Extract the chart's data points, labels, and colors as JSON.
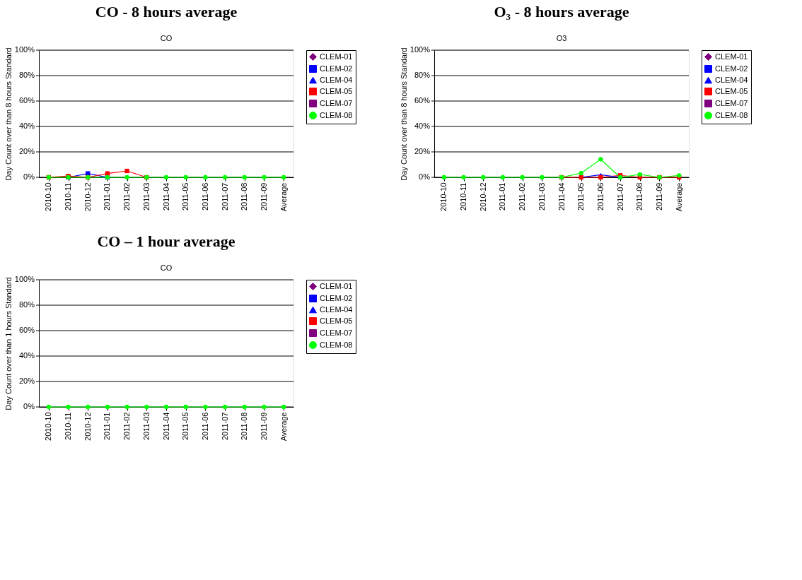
{
  "chart_data": [
    {
      "type": "line",
      "title": "CO - 8 hours average",
      "subtitle": "CO",
      "ylabel": "Day Count over than 8 hours Standard",
      "categories": [
        "2010-10",
        "2010-11",
        "2010-12",
        "2011-01",
        "2011-02",
        "2011-03",
        "2011-04",
        "2011-05",
        "2011-06",
        "2011-07",
        "2011-08",
        "2011-09",
        "Average"
      ],
      "ylim": [
        0,
        100
      ],
      "yticks": [
        {
          "value": 0,
          "label": "0%"
        },
        {
          "value": 20,
          "label": "20%"
        },
        {
          "value": 40,
          "label": "40%"
        },
        {
          "value": 60,
          "label": "60%"
        },
        {
          "value": 80,
          "label": "80%"
        },
        {
          "value": 100,
          "label": "100%"
        }
      ],
      "grid": "y",
      "legend": "right",
      "series": [
        {
          "name": "CLEM-01",
          "color": "#800080",
          "marker": "diamond",
          "values": [
            null,
            null,
            null,
            null,
            null,
            null,
            null,
            null,
            null,
            null,
            null,
            null,
            null
          ]
        },
        {
          "name": "CLEM-02",
          "color": "#0000ff",
          "marker": "square",
          "values": [
            null,
            0,
            3,
            0,
            null,
            null,
            null,
            null,
            null,
            null,
            null,
            null,
            null
          ]
        },
        {
          "name": "CLEM-04",
          "color": "#0000ff",
          "marker": "triangle",
          "values": [
            null,
            null,
            null,
            null,
            null,
            null,
            null,
            null,
            null,
            null,
            null,
            null,
            null
          ]
        },
        {
          "name": "CLEM-05",
          "color": "#ff0000",
          "marker": "square",
          "values": [
            0,
            1,
            0,
            3,
            5,
            0,
            null,
            null,
            null,
            null,
            null,
            null,
            null
          ]
        },
        {
          "name": "CLEM-07",
          "color": "#800080",
          "marker": "square",
          "values": [
            null,
            null,
            null,
            null,
            null,
            null,
            null,
            null,
            null,
            null,
            null,
            null,
            null
          ]
        },
        {
          "name": "CLEM-08",
          "color": "#00ff00",
          "marker": "circle",
          "values": [
            0,
            0,
            0,
            0,
            0,
            0,
            0,
            0,
            0,
            0,
            0,
            0,
            0
          ]
        }
      ]
    },
    {
      "type": "line",
      "title": "O₃ - 8 hours average",
      "subtitle": "O3",
      "ylabel": "Day Count over than 8 hours Standard",
      "categories": [
        "2010-10",
        "2010-11",
        "2010-12",
        "2011-01",
        "2011-02",
        "2011-03",
        "2011-04",
        "2011-05",
        "2011-06",
        "2011-07",
        "2011-08",
        "2011-09",
        "Average"
      ],
      "ylim": [
        0,
        100
      ],
      "yticks": [
        {
          "value": 0,
          "label": "0%"
        },
        {
          "value": 20,
          "label": "20%"
        },
        {
          "value": 40,
          "label": "40%"
        },
        {
          "value": 60,
          "label": "60%"
        },
        {
          "value": 80,
          "label": "80%"
        },
        {
          "value": 100,
          "label": "100%"
        }
      ],
      "grid": "y",
      "legend": "right",
      "series": [
        {
          "name": "CLEM-01",
          "color": "#800080",
          "marker": "diamond",
          "values": [
            null,
            null,
            null,
            null,
            null,
            null,
            null,
            null,
            null,
            null,
            null,
            null,
            null
          ]
        },
        {
          "name": "CLEM-02",
          "color": "#0000ff",
          "marker": "square",
          "values": [
            null,
            null,
            null,
            null,
            null,
            null,
            null,
            null,
            null,
            null,
            null,
            null,
            null
          ]
        },
        {
          "name": "CLEM-04",
          "color": "#0000ff",
          "marker": "triangle",
          "values": [
            null,
            null,
            null,
            null,
            null,
            null,
            null,
            0,
            2,
            0,
            null,
            null,
            null
          ]
        },
        {
          "name": "CLEM-05",
          "color": "#ff0000",
          "marker": "square",
          "values": [
            null,
            null,
            null,
            null,
            null,
            null,
            0,
            0,
            0,
            1.5,
            0,
            0,
            0
          ]
        },
        {
          "name": "CLEM-07",
          "color": "#800080",
          "marker": "square",
          "values": [
            null,
            null,
            null,
            null,
            null,
            null,
            null,
            null,
            null,
            null,
            null,
            null,
            null
          ]
        },
        {
          "name": "CLEM-08",
          "color": "#00ff00",
          "marker": "circle",
          "values": [
            0,
            0,
            0,
            0,
            0,
            0,
            0,
            3.3,
            14.2,
            0,
            2.3,
            0,
            1.5
          ]
        }
      ]
    },
    {
      "type": "line",
      "title": "CO – 1 hour average",
      "subtitle": "CO",
      "ylabel": "Day Count over than 1 hours Standard",
      "categories": [
        "2010-10",
        "2010-11",
        "2010-12",
        "2011-01",
        "2011-02",
        "2011-03",
        "2011-04",
        "2011-05",
        "2011-06",
        "2011-07",
        "2011-08",
        "2011-09",
        "Average"
      ],
      "ylim": [
        0,
        100
      ],
      "yticks": [
        {
          "value": 0,
          "label": "0%"
        },
        {
          "value": 20,
          "label": "20%"
        },
        {
          "value": 40,
          "label": "40%"
        },
        {
          "value": 60,
          "label": "60%"
        },
        {
          "value": 80,
          "label": "80%"
        },
        {
          "value": 100,
          "label": "100%"
        }
      ],
      "grid": "y",
      "legend": "right",
      "series": [
        {
          "name": "CLEM-01",
          "color": "#800080",
          "marker": "diamond",
          "values": [
            null,
            null,
            null,
            null,
            null,
            null,
            null,
            null,
            null,
            null,
            null,
            null,
            null
          ]
        },
        {
          "name": "CLEM-02",
          "color": "#0000ff",
          "marker": "square",
          "values": [
            null,
            null,
            null,
            null,
            null,
            null,
            null,
            null,
            null,
            null,
            null,
            null,
            null
          ]
        },
        {
          "name": "CLEM-04",
          "color": "#0000ff",
          "marker": "triangle",
          "values": [
            null,
            null,
            null,
            null,
            null,
            null,
            null,
            null,
            null,
            null,
            null,
            null,
            null
          ]
        },
        {
          "name": "CLEM-05",
          "color": "#ff0000",
          "marker": "square",
          "values": [
            null,
            null,
            null,
            null,
            null,
            null,
            null,
            null,
            null,
            null,
            null,
            null,
            null
          ]
        },
        {
          "name": "CLEM-07",
          "color": "#800080",
          "marker": "square",
          "values": [
            null,
            null,
            null,
            null,
            null,
            null,
            null,
            null,
            null,
            null,
            null,
            null,
            null
          ]
        },
        {
          "name": "CLEM-08",
          "color": "#00ff00",
          "marker": "circle",
          "values": [
            0,
            0,
            0,
            0,
            0,
            0,
            0,
            0,
            0,
            0,
            0,
            0,
            0
          ]
        }
      ]
    }
  ]
}
